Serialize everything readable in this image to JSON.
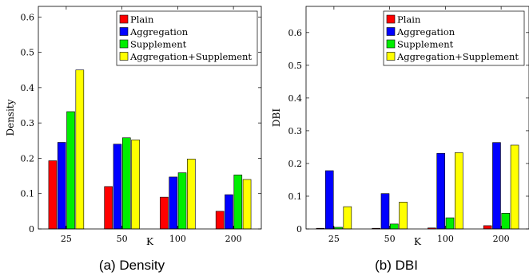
{
  "chart_data": [
    {
      "type": "bar",
      "caption": "(a) Density",
      "xlabel": "K",
      "ylabel": "Density",
      "categories": [
        "25",
        "50",
        "100",
        "200"
      ],
      "ylim": [
        0,
        0.63
      ],
      "yticks": [
        0,
        0.1,
        0.2,
        0.3,
        0.4,
        0.5,
        0.6
      ],
      "grid": false,
      "legend_position": "top-right",
      "series": [
        {
          "name": "Plain",
          "color": "#ff0000",
          "values": [
            0.193,
            0.12,
            0.09,
            0.05
          ]
        },
        {
          "name": "Aggregation",
          "color": "#0000ff",
          "values": [
            0.245,
            0.24,
            0.147,
            0.097
          ]
        },
        {
          "name": "Supplement",
          "color": "#00ee00",
          "values": [
            0.332,
            0.258,
            0.159,
            0.153
          ]
        },
        {
          "name": "Aggregation+Supplement",
          "color": "#ffff00",
          "values": [
            0.45,
            0.252,
            0.198,
            0.14
          ]
        }
      ]
    },
    {
      "type": "bar",
      "caption": "(b) DBI",
      "xlabel": "K",
      "ylabel": "DBI",
      "categories": [
        "25",
        "50",
        "100",
        "200"
      ],
      "ylim": [
        0,
        0.68
      ],
      "yticks": [
        0,
        0.1,
        0.2,
        0.3,
        0.4,
        0.5,
        0.6
      ],
      "grid": false,
      "legend_position": "top-right",
      "series": [
        {
          "name": "Plain",
          "color": "#ff0000",
          "values": [
            0.002,
            0.002,
            0.003,
            0.01
          ]
        },
        {
          "name": "Aggregation",
          "color": "#0000ff",
          "values": [
            0.178,
            0.108,
            0.231,
            0.264
          ]
        },
        {
          "name": "Supplement",
          "color": "#00ee00",
          "values": [
            0.005,
            0.015,
            0.034,
            0.048
          ]
        },
        {
          "name": "Aggregation+Supplement",
          "color": "#ffff00",
          "values": [
            0.068,
            0.082,
            0.233,
            0.256
          ]
        }
      ]
    }
  ]
}
